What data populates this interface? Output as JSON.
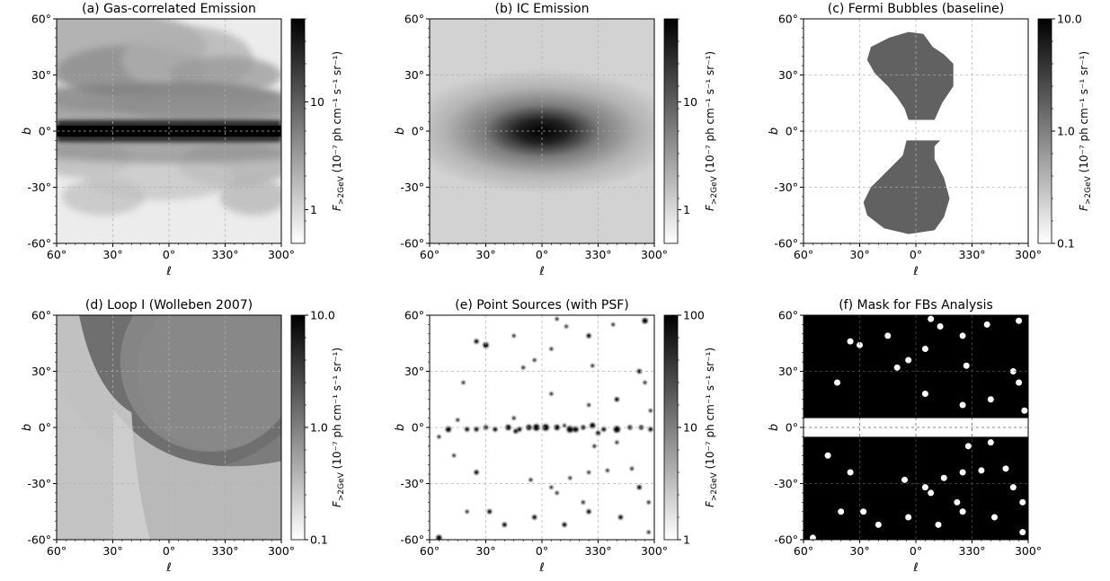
{
  "figure": {
    "panels": [
      {
        "id": "a",
        "title": "(a) Gas-correlated Emission",
        "xlabel": "ℓ",
        "ylabel": "b",
        "xticks": [
          "60°",
          "30°",
          "0°",
          "330°",
          "300°"
        ],
        "yticks": [
          "60°",
          "30°",
          "0°",
          "-30°",
          "-60°"
        ],
        "colorbar": {
          "label": "F>2GeV (10⁻⁷ ph cm⁻¹ s⁻¹ sr⁻¹)",
          "label_main": "F",
          "label_sub": ">2GeV",
          "label_unit": " (10⁻⁷ ph cm⁻¹ s⁻¹ sr⁻¹)",
          "ticks": [
            "10",
            "1"
          ],
          "scale": "log"
        }
      },
      {
        "id": "b",
        "title": "(b) IC Emission",
        "xlabel": "ℓ",
        "ylabel": "b",
        "xticks": [
          "60°",
          "30°",
          "0°",
          "330°",
          "300°"
        ],
        "yticks": [
          "60°",
          "30°",
          "0°",
          "-30°",
          "-60°"
        ],
        "colorbar": {
          "label_main": "F",
          "label_sub": ">2GeV",
          "label_unit": " (10⁻⁷ ph cm⁻¹ s⁻¹ sr⁻¹)",
          "ticks": [
            "10",
            "1"
          ],
          "scale": "log"
        }
      },
      {
        "id": "c",
        "title": "(c) Fermi Bubbles (baseline)",
        "xlabel": "ℓ",
        "ylabel": "b",
        "xticks": [
          "60°",
          "30°",
          "0°",
          "330°",
          "300°"
        ],
        "yticks": [
          "60°",
          "30°",
          "0°",
          "-30°",
          "-60°"
        ],
        "colorbar": {
          "label_main": "F",
          "label_sub": ">2GeV",
          "label_unit": " (10⁻⁷ ph cm⁻¹ s⁻¹ sr⁻¹)",
          "ticks": [
            "10.0",
            "1.0",
            "0.1"
          ],
          "scale": "log"
        }
      },
      {
        "id": "d",
        "title": "(d) Loop I (Wolleben 2007)",
        "xlabel": "ℓ",
        "ylabel": "b",
        "xticks": [
          "60°",
          "30°",
          "0°",
          "330°",
          "300°"
        ],
        "yticks": [
          "60°",
          "30°",
          "0°",
          "-30°",
          "-60°"
        ],
        "colorbar": {
          "label_main": "F",
          "label_sub": ">2GeV",
          "label_unit": " (10⁻⁷ ph cm⁻¹ s⁻¹ sr⁻¹)",
          "ticks": [
            "10.0",
            "1.0",
            "0.1"
          ],
          "scale": "log"
        }
      },
      {
        "id": "e",
        "title": "(e) Point Sources (with PSF)",
        "xlabel": "ℓ",
        "ylabel": "b",
        "xticks": [
          "60°",
          "30°",
          "0°",
          "330°",
          "300°"
        ],
        "yticks": [
          "60°",
          "30°",
          "0°",
          "-30°",
          "-60°"
        ],
        "colorbar": {
          "label_main": "F",
          "label_sub": ">2GeV",
          "label_unit": " (10⁻⁷ ph cm⁻¹ s⁻¹ sr⁻¹)",
          "ticks": [
            "100",
            "10",
            "1"
          ],
          "scale": "log"
        }
      },
      {
        "id": "f",
        "title": "(f) Mask for FBs Analysis",
        "xlabel": "ℓ",
        "ylabel": "b",
        "xticks": [
          "60°",
          "30°",
          "0°",
          "330°",
          "300°"
        ],
        "yticks": [
          "60°",
          "30°",
          "0°",
          "-30°",
          "-60°"
        ],
        "colorbar": null
      }
    ]
  },
  "chart_data": [
    {
      "type": "heatmap",
      "title": "(a) Gas-correlated Emission",
      "xlabel": "ℓ",
      "ylabel": "b",
      "xlim": [
        60,
        -60
      ],
      "ylim": [
        -60,
        60
      ],
      "colorscale": "gray_r",
      "zscale": "log",
      "zlim": [
        0.55,
        40
      ],
      "grid": true
    },
    {
      "type": "heatmap",
      "title": "(b) IC Emission",
      "xlabel": "ℓ",
      "ylabel": "b",
      "xlim": [
        60,
        -60
      ],
      "ylim": [
        -60,
        60
      ],
      "colorscale": "gray_r",
      "zscale": "log",
      "zlim": [
        0.55,
        40
      ],
      "grid": true
    },
    {
      "type": "heatmap",
      "title": "(c) Fermi Bubbles (baseline)",
      "xlabel": "ℓ",
      "ylabel": "b",
      "xlim": [
        60,
        -60
      ],
      "ylim": [
        -60,
        60
      ],
      "colorscale": "gray_r",
      "zscale": "log",
      "zlim": [
        0.1,
        10
      ],
      "grid": true,
      "regions": [
        {
          "name": "north",
          "outline": [
            [
              -10,
              6
            ],
            [
              -14,
              15
            ],
            [
              -20,
              24
            ],
            [
              -20,
              36
            ],
            [
              -15,
              41
            ],
            [
              -9,
              45
            ],
            [
              -4,
              52
            ],
            [
              4,
              53
            ],
            [
              14,
              50
            ],
            [
              24,
              45
            ],
            [
              26,
              38
            ],
            [
              22,
              31
            ],
            [
              15,
              24
            ],
            [
              10,
              18
            ],
            [
              6,
              12
            ],
            [
              4,
              6
            ]
          ]
        },
        {
          "name": "south",
          "outline": [
            [
              -13,
              -5
            ],
            [
              5,
              -5
            ],
            [
              7,
              -13
            ],
            [
              15,
              -21
            ],
            [
              24,
              -30
            ],
            [
              28,
              -38
            ],
            [
              26,
              -45
            ],
            [
              17,
              -52
            ],
            [
              4,
              -55
            ],
            [
              -10,
              -53
            ],
            [
              -15,
              -46
            ],
            [
              -18,
              -36
            ],
            [
              -15,
              -25
            ],
            [
              -10,
              -15
            ],
            [
              -10,
              -8
            ]
          ]
        }
      ]
    },
    {
      "type": "heatmap",
      "title": "(d) Loop I (Wolleben 2007)",
      "xlabel": "ℓ",
      "ylabel": "b",
      "xlim": [
        60,
        -60
      ],
      "ylim": [
        -60,
        60
      ],
      "colorscale": "gray_r",
      "zscale": "log",
      "zlim": [
        0.1,
        10
      ],
      "grid": true,
      "shells": [
        {
          "name": "shell-outer",
          "center": [
            -10,
            50
          ],
          "radius": 73
        },
        {
          "name": "shell-inner",
          "center": [
            -22,
            35
          ],
          "radius": 48
        },
        {
          "name": "shell-low",
          "center": [
            -32,
            40
          ],
          "radius": 85
        }
      ]
    },
    {
      "type": "scatter",
      "title": "(e) Point Sources (with PSF)",
      "xlabel": "ℓ",
      "ylabel": "b",
      "xlim": [
        60,
        -60
      ],
      "ylim": [
        -60,
        60
      ],
      "colorscale": "gray_r",
      "zscale": "log",
      "zlim": [
        1,
        100
      ],
      "grid": true,
      "points": [
        [
          50,
          -1,
          2.5
        ],
        [
          40,
          -1,
          2
        ],
        [
          35,
          -1,
          2
        ],
        [
          30,
          0,
          2
        ],
        [
          25,
          -1,
          2
        ],
        [
          18,
          0,
          2.5
        ],
        [
          12,
          -1,
          2
        ],
        [
          7,
          0,
          2.5
        ],
        [
          3,
          0,
          3
        ],
        [
          -2,
          0,
          3
        ],
        [
          -8,
          0,
          2.5
        ],
        [
          -15,
          -1,
          3
        ],
        [
          -18,
          -1,
          2.5
        ],
        [
          -22,
          0,
          2
        ],
        [
          -27,
          1,
          2.5
        ],
        [
          -33,
          -1,
          2
        ],
        [
          -40,
          -1,
          3
        ],
        [
          -47,
          0,
          2
        ],
        [
          -53,
          0,
          2
        ],
        [
          -58,
          -1,
          2
        ],
        [
          45,
          4,
          1.5
        ],
        [
          14,
          -2,
          2
        ],
        [
          -30,
          -3,
          2
        ],
        [
          -12,
          1,
          1.5
        ],
        [
          35,
          46,
          2
        ],
        [
          30,
          44,
          2.5
        ],
        [
          15,
          49,
          1.5
        ],
        [
          -5,
          42,
          1.5
        ],
        [
          -25,
          49,
          2
        ],
        [
          -13,
          54,
          1.5
        ],
        [
          -8,
          58,
          1.5
        ],
        [
          -38,
          55,
          1.5
        ],
        [
          -55,
          57,
          2.5
        ],
        [
          10,
          32,
          1.5
        ],
        [
          4,
          36,
          1.5
        ],
        [
          -27,
          33,
          1.5
        ],
        [
          -52,
          30,
          2
        ],
        [
          -55,
          24,
          1.5
        ],
        [
          42,
          24,
          1.5
        ],
        [
          -40,
          15,
          2
        ],
        [
          -5,
          18,
          1.5
        ],
        [
          -25,
          12,
          1.5
        ],
        [
          -40,
          -8,
          1.5
        ],
        [
          15,
          5,
          1.5
        ],
        [
          -58,
          9,
          1.5
        ],
        [
          55,
          -5,
          1.5
        ],
        [
          47,
          -15,
          1.5
        ],
        [
          -28,
          -10,
          1.5
        ],
        [
          35,
          -24,
          2
        ],
        [
          6,
          -28,
          1.5
        ],
        [
          -15,
          -27,
          1.5
        ],
        [
          -25,
          -24,
          1.5
        ],
        [
          -35,
          -23,
          1.5
        ],
        [
          -48,
          -22,
          1.5
        ],
        [
          -5,
          -32,
          1.5
        ],
        [
          -8,
          -35,
          1.5
        ],
        [
          -22,
          -40,
          1.5
        ],
        [
          -12,
          -52,
          2
        ],
        [
          -25,
          -45,
          2
        ],
        [
          -52,
          -32,
          2
        ],
        [
          -57,
          -40,
          1.5
        ],
        [
          40,
          -45,
          1.5
        ],
        [
          28,
          -45,
          2
        ],
        [
          4,
          -48,
          2
        ],
        [
          -42,
          -48,
          2
        ],
        [
          20,
          -52,
          2
        ],
        [
          55,
          -59,
          2.5
        ],
        [
          -57,
          -56,
          1.5
        ]
      ]
    },
    {
      "type": "heatmap",
      "title": "(f) Mask for FBs Analysis",
      "xlabel": "ℓ",
      "ylabel": "b",
      "xlim": [
        60,
        -60
      ],
      "ylim": [
        -60,
        60
      ],
      "grid": true,
      "masked_band": [
        -5,
        5
      ]
    }
  ]
}
